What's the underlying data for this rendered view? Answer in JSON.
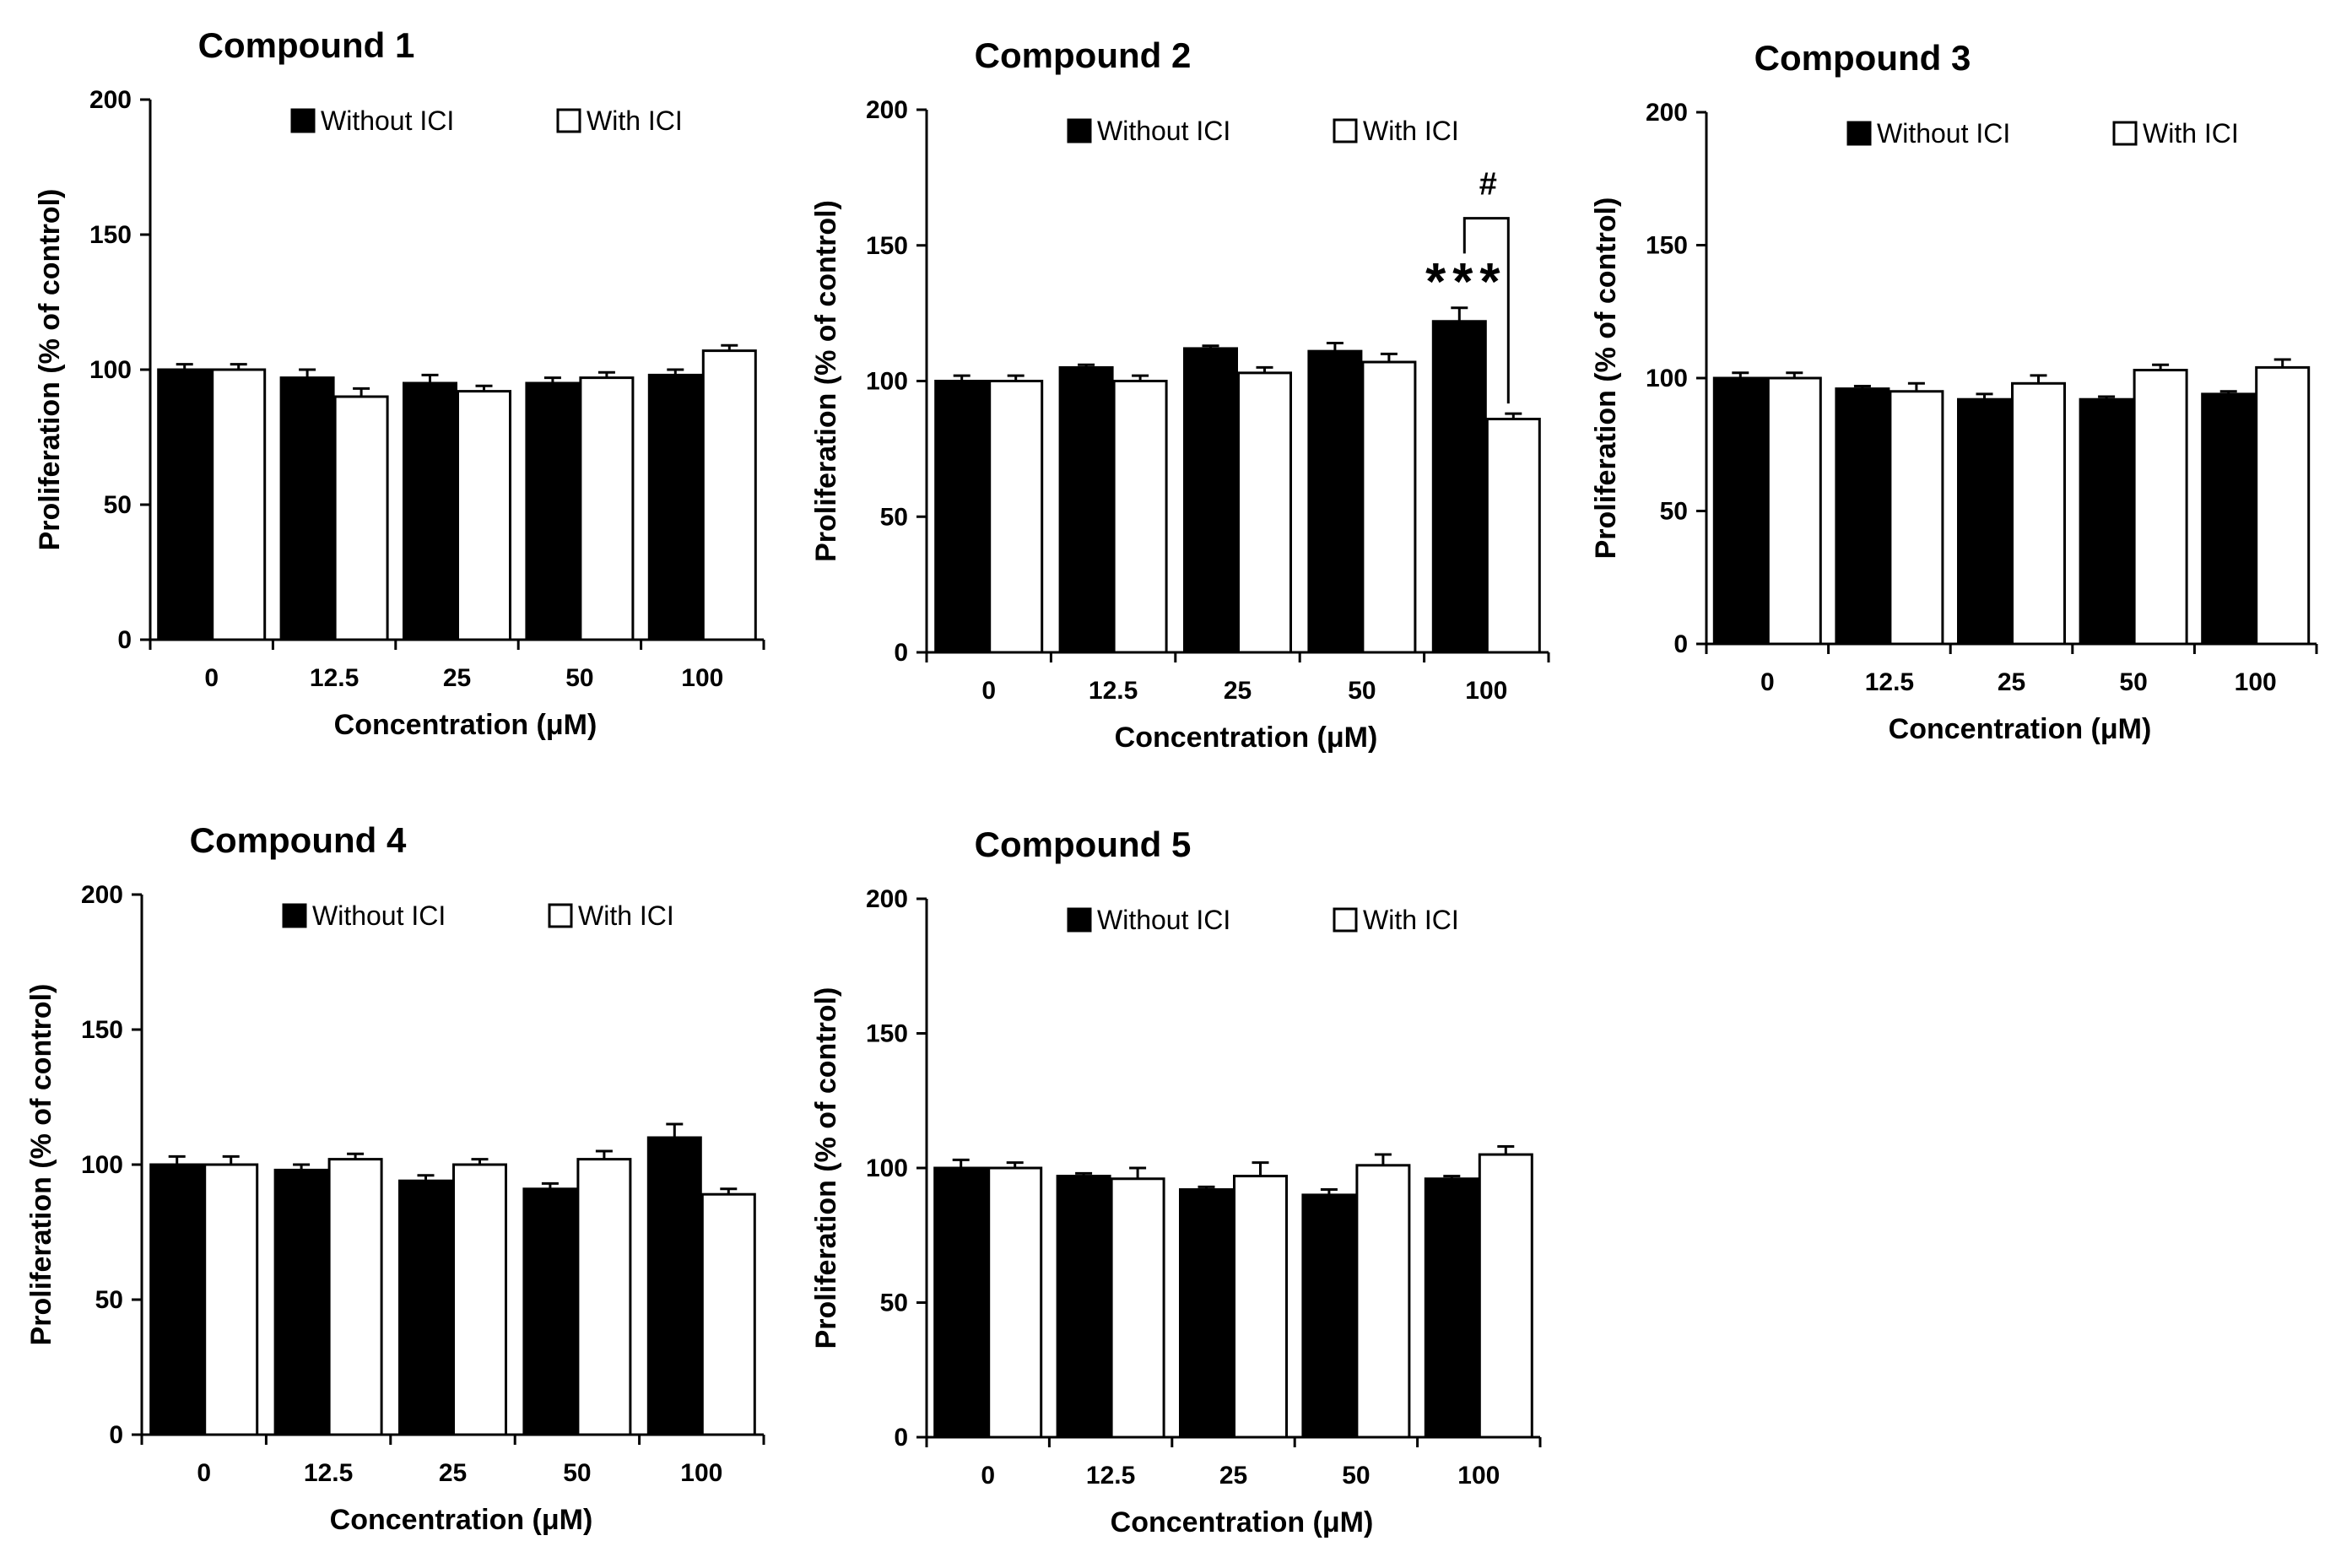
{
  "chart_data": [
    {
      "type": "bar",
      "title": "Compound  1",
      "xlabel": "Concentration (μM)",
      "ylabel": "Proliferation (% of control)",
      "ylim": [
        0,
        200
      ],
      "yticks": [
        "0",
        "50",
        "100",
        "150",
        "200"
      ],
      "categories": [
        "0",
        "12.5",
        "25",
        "50",
        "100"
      ],
      "legend_position": "top",
      "series": [
        {
          "name": "Without ICI",
          "color": "#000000",
          "values": [
            100,
            97,
            95,
            95,
            98
          ],
          "errors": [
            2,
            3,
            3,
            2,
            2
          ]
        },
        {
          "name": "With ICI",
          "color": "#ffffff",
          "values": [
            100,
            90,
            92,
            97,
            107
          ],
          "errors": [
            2,
            3,
            2,
            2,
            2
          ]
        }
      ],
      "annotations": []
    },
    {
      "type": "bar",
      "title": "Compound  2",
      "xlabel": "Concentration (μM)",
      "ylabel": "Proliferation (% of control)",
      "ylim": [
        0,
        200
      ],
      "yticks": [
        "0",
        "50",
        "100",
        "150",
        "200"
      ],
      "categories": [
        "0",
        "12.5",
        "25",
        "50",
        "100"
      ],
      "legend_position": "top",
      "series": [
        {
          "name": "Without ICI",
          "color": "#000000",
          "values": [
            100,
            105,
            112,
            111,
            122
          ],
          "errors": [
            2,
            1,
            1,
            3,
            5
          ]
        },
        {
          "name": "With ICI",
          "color": "#ffffff",
          "values": [
            100,
            100,
            103,
            107,
            86
          ],
          "errors": [
            2,
            2,
            2,
            3,
            2
          ]
        }
      ],
      "annotations": [
        {
          "text": "***",
          "category": "100",
          "series": "Without ICI"
        },
        {
          "text": "#",
          "category": "100",
          "bracket": true
        }
      ]
    },
    {
      "type": "bar",
      "title": "Compound  3",
      "xlabel": "Concentration (μM)",
      "ylabel": "Proliferation (% of control)",
      "ylim": [
        0,
        200
      ],
      "yticks": [
        "0",
        "50",
        "100",
        "150",
        "200"
      ],
      "categories": [
        "0",
        "12.5",
        "25",
        "50",
        "100"
      ],
      "legend_position": "top",
      "series": [
        {
          "name": "Without ICI",
          "color": "#000000",
          "values": [
            100,
            96,
            92,
            92,
            94
          ],
          "errors": [
            2,
            1,
            2,
            1,
            1
          ]
        },
        {
          "name": "With ICI",
          "color": "#ffffff",
          "values": [
            100,
            95,
            98,
            103,
            104
          ],
          "errors": [
            2,
            3,
            3,
            2,
            3
          ]
        }
      ],
      "annotations": []
    },
    {
      "type": "bar",
      "title": "Compound  4",
      "xlabel": "Concentration (μM)",
      "ylabel": "Proliferation (% of control)",
      "ylim": [
        0,
        200
      ],
      "yticks": [
        "0",
        "50",
        "100",
        "150",
        "200"
      ],
      "categories": [
        "0",
        "12.5",
        "25",
        "50",
        "100"
      ],
      "legend_position": "top",
      "series": [
        {
          "name": "Without ICI",
          "color": "#000000",
          "values": [
            100,
            98,
            94,
            91,
            110
          ],
          "errors": [
            3,
            2,
            2,
            2,
            5
          ]
        },
        {
          "name": "With ICI",
          "color": "#ffffff",
          "values": [
            100,
            102,
            100,
            102,
            89
          ],
          "errors": [
            3,
            2,
            2,
            3,
            2
          ]
        }
      ],
      "annotations": []
    },
    {
      "type": "bar",
      "title": "Compound  5",
      "xlabel": "Concentration (μM)",
      "ylabel": "Proliferation (% of control)",
      "ylim": [
        0,
        200
      ],
      "yticks": [
        "0",
        "50",
        "100",
        "150",
        "200"
      ],
      "categories": [
        "0",
        "12.5",
        "25",
        "50",
        "100"
      ],
      "legend_position": "top",
      "series": [
        {
          "name": "Without ICI",
          "color": "#000000",
          "values": [
            100,
            97,
            92,
            90,
            96
          ],
          "errors": [
            3,
            1,
            1,
            2,
            1
          ]
        },
        {
          "name": "With ICI",
          "color": "#ffffff",
          "values": [
            100,
            96,
            97,
            101,
            105
          ],
          "errors": [
            2,
            4,
            5,
            4,
            3
          ]
        }
      ],
      "annotations": []
    }
  ]
}
